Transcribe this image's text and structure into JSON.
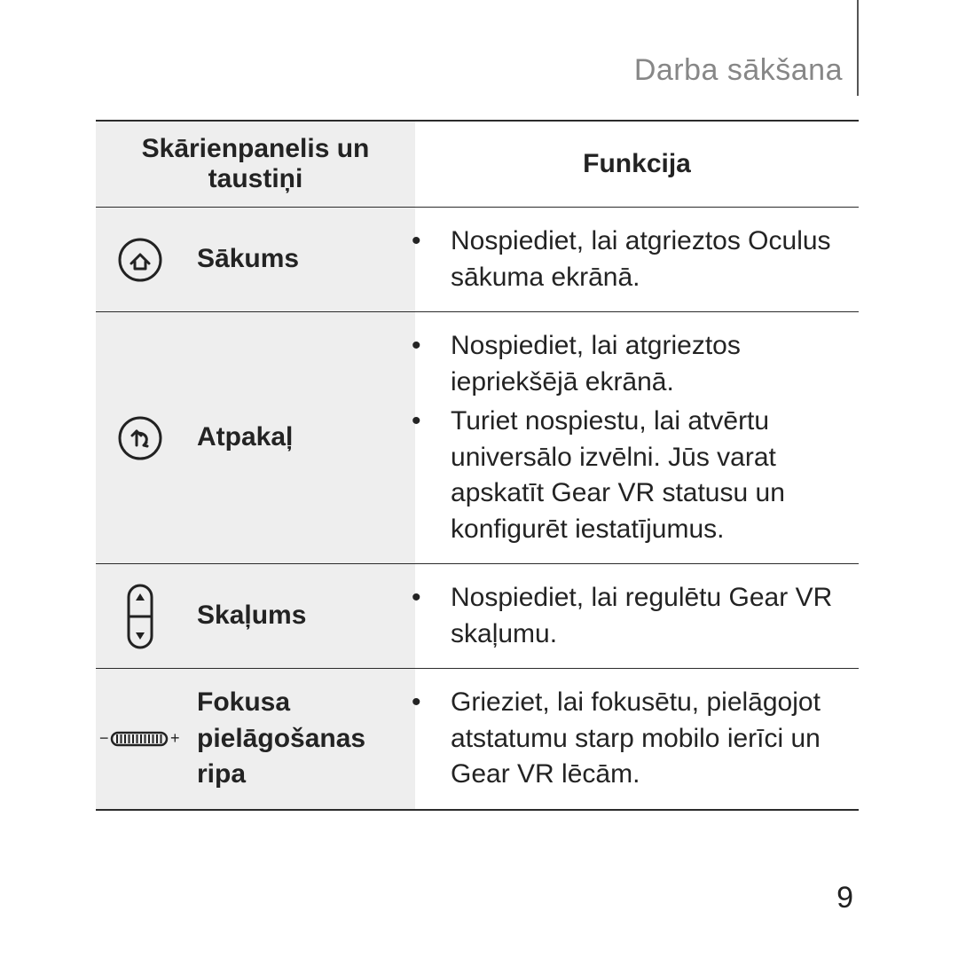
{
  "header": "Darba sākšana",
  "page_number": "9",
  "table": {
    "head_left": "Skārienpanelis un taustiņi",
    "head_right": "Funkcija",
    "rows": [
      {
        "icon": "home",
        "label": "Sākums",
        "funcs": [
          "Nospiediet, lai atgrieztos Oculus sākuma ekrānā."
        ]
      },
      {
        "icon": "back",
        "label": "Atpakaļ",
        "funcs": [
          "Nospiediet, lai atgrieztos iepriekšējā ekrānā.",
          "Turiet nospiestu, lai atvērtu universālo izvēlni. Jūs varat apskatīt Gear VR statusu un konfigurēt iestatījumus."
        ]
      },
      {
        "icon": "volume",
        "label": "Skaļums",
        "funcs": [
          "Nospiediet, lai regulētu Gear VR skaļumu."
        ]
      },
      {
        "icon": "focus",
        "label": "Fokusa pielāgošanas ripa",
        "funcs": [
          "Grieziet, lai fokusētu, pielāgojot atstatumu starp mobilo ierīci un Gear VR lēcām."
        ]
      }
    ]
  }
}
